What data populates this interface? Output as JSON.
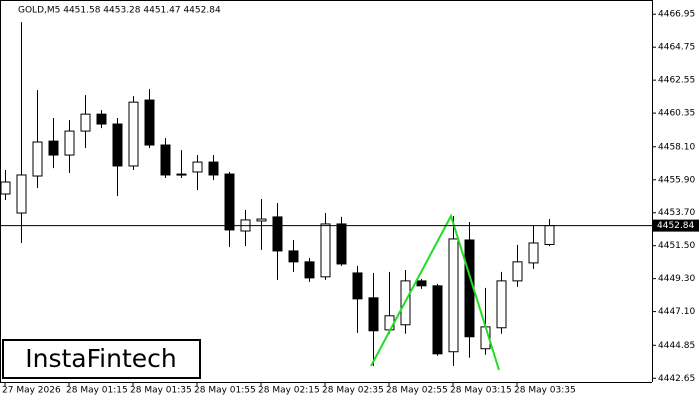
{
  "chart_data": {
    "type": "candlestick",
    "title": "GOLD,M5  4451.58 4453.28 4451.47 4452.84",
    "watermark": "InstaFintech",
    "categories": [
      "27 May 2026",
      null,
      null,
      null,
      "28 May 01:15",
      null,
      null,
      null,
      "28 May 01:35",
      null,
      null,
      null,
      "28 May 01:55",
      null,
      null,
      null,
      "28 May 02:15",
      null,
      null,
      null,
      "28 May 02:35",
      null,
      null,
      null,
      "28 May 02:55",
      null,
      null,
      null,
      "28 May 03:15",
      null,
      null,
      null,
      "28 May 03:35",
      null,
      null
    ],
    "open": [
      4454.95,
      4453.68,
      4456.15,
      4458.48,
      4457.55,
      4459.15,
      4460.28,
      4459.62,
      4456.82,
      4461.22,
      4458.22,
      4456.28,
      4456.42,
      4457.08,
      4456.28,
      4452.48,
      4453.15,
      4453.42,
      4451.15,
      4450.42,
      4449.42,
      4452.95,
      4449.68,
      4448.02,
      4445.88,
      4446.22,
      4449.15,
      4448.82,
      4444.42,
      4451.88,
      4444.62,
      4446.02,
      4449.15,
      4450.35,
      4451.58
    ],
    "high": [
      4456.55,
      4466.42,
      4461.88,
      4460.02,
      4459.88,
      4461.55,
      4460.55,
      4460.02,
      4461.48,
      4461.95,
      4458.68,
      4457.88,
      4457.55,
      4457.55,
      4456.42,
      4453.88,
      4454.62,
      4454.35,
      4451.88,
      4450.68,
      4453.68,
      4453.42,
      4450.15,
      4449.68,
      4449.75,
      4449.88,
      4449.28,
      4448.95,
      4453.48,
      4453.08,
      4448.68,
      4449.75,
      4451.55,
      4452.88,
      4453.28
    ],
    "low": [
      4454.55,
      4451.68,
      4455.35,
      4456.68,
      4456.35,
      4458.02,
      4459.35,
      4454.82,
      4456.55,
      4458.02,
      4456.02,
      4456.02,
      4455.22,
      4455.88,
      4451.42,
      4451.48,
      4451.22,
      4449.22,
      4449.75,
      4449.08,
      4449.22,
      4450.15,
      4445.68,
      4443.48,
      4445.62,
      4445.62,
      4448.62,
      4444.15,
      4443.48,
      4444.02,
      4444.22,
      4445.62,
      4448.75,
      4449.95,
      4451.47
    ],
    "close": [
      4455.75,
      4456.22,
      4458.42,
      4457.55,
      4459.15,
      4460.28,
      4459.62,
      4456.82,
      4461.08,
      4458.22,
      4456.22,
      4456.22,
      4457.08,
      4456.22,
      4452.55,
      4453.22,
      4453.28,
      4451.15,
      4450.42,
      4449.35,
      4452.95,
      4450.28,
      4447.95,
      4445.82,
      4446.82,
      4449.15,
      4448.82,
      4444.28,
      4451.95,
      4445.42,
      4446.08,
      4449.15,
      4450.42,
      4451.68,
      4452.84
    ],
    "up_color": "#ffffff",
    "down_color": "#000000",
    "current_price": 4452.84,
    "ylim": [
      4442.4,
      4467.9
    ],
    "yticks": [
      4466.95,
      4464.75,
      4462.55,
      4460.35,
      {
        "value": 4458.1,
        "label": "4458.10"
      },
      {
        "value": 4455.9,
        "label": "4455.90"
      },
      {
        "value": 4453.7,
        "label": "4453.70"
      },
      {
        "value": 4451.5,
        "label": "4451.50"
      },
      {
        "value": 4449.3,
        "label": "4449.30"
      },
      {
        "value": 4447.1,
        "label": "4447.10"
      },
      4444.85,
      4442.65
    ]
  }
}
